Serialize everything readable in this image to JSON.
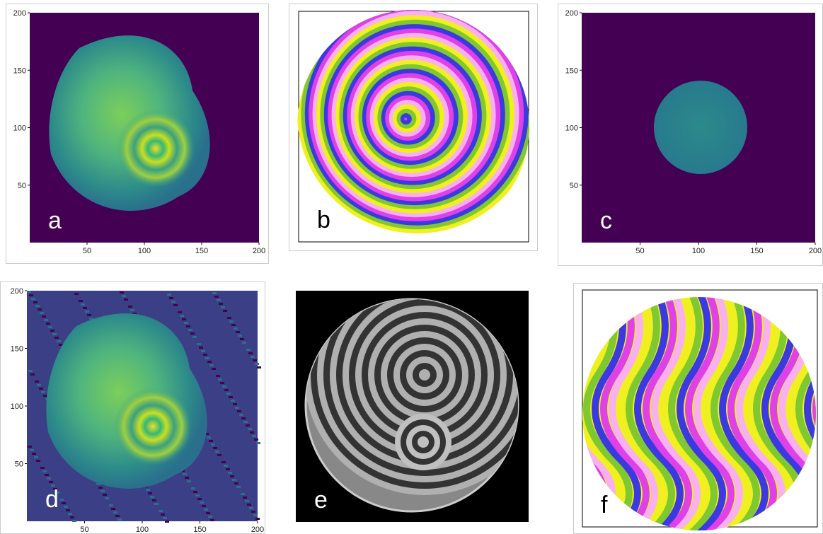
{
  "panels": [
    {
      "label": "a",
      "xlim": [
        0,
        200
      ],
      "ylim": [
        0,
        200
      ],
      "xticks": [
        50,
        100,
        150,
        200
      ],
      "yticks": [
        50,
        100,
        150,
        200
      ]
    },
    {
      "label": "b"
    },
    {
      "label": "c",
      "xlim": [
        0,
        200
      ],
      "ylim": [
        0,
        200
      ],
      "xticks": [
        50,
        100,
        150,
        200
      ],
      "yticks": [
        50,
        100,
        150,
        200
      ]
    },
    {
      "label": "d",
      "xlim": [
        0,
        200
      ],
      "ylim": [
        0,
        200
      ],
      "xticks": [
        50,
        100,
        150,
        200
      ],
      "yticks": [
        50,
        100,
        150,
        200
      ]
    },
    {
      "label": "e"
    },
    {
      "label": "f"
    }
  ]
}
